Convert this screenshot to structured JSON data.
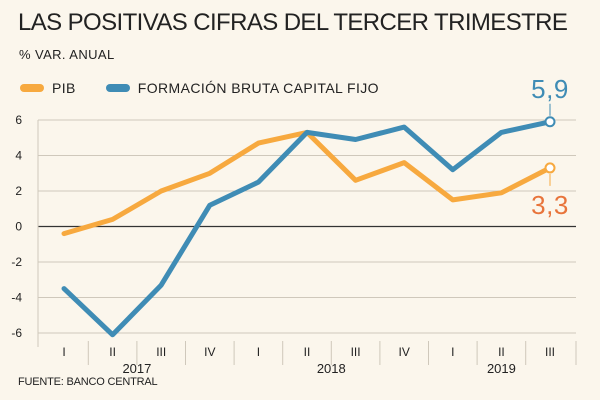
{
  "header": {
    "title": "LAS POSITIVAS CIFRAS DEL TERCER TRIMESTRE",
    "subtitle": "% VAR. ANUAL"
  },
  "footer": {
    "source": "FUENTE: BANCO CENTRAL"
  },
  "colors": {
    "pib": "#f7a93f",
    "fbcf": "#3f8cb5",
    "pib_callout": "#e8743b",
    "fbcf_callout": "#3f8cb5",
    "grid": "#cfc8bb",
    "zero_line": "#333333"
  },
  "chart_data": {
    "type": "line",
    "title": "LAS POSITIVAS CIFRAS DEL TERCER TRIMESTRE",
    "subtitle": "% VAR. ANUAL",
    "categories": [
      "I",
      "II",
      "III",
      "IV",
      "I",
      "II",
      "III",
      "IV",
      "I",
      "II",
      "III"
    ],
    "year_groups": [
      {
        "label": "2017",
        "start": 0,
        "end": 3
      },
      {
        "label": "2018",
        "start": 4,
        "end": 7
      },
      {
        "label": "2019",
        "start": 8,
        "end": 10
      }
    ],
    "series": [
      {
        "name": "PIB",
        "color": "#f7a93f",
        "values": [
          -0.4,
          0.4,
          2.0,
          3.0,
          4.7,
          5.3,
          2.6,
          3.6,
          1.5,
          1.9,
          3.3
        ]
      },
      {
        "name": "FORMACIÓN BRUTA CAPITAL FIJO",
        "color": "#3f8cb5",
        "values": [
          -3.5,
          -6.1,
          -3.3,
          1.2,
          2.5,
          5.3,
          4.9,
          5.6,
          3.2,
          5.3,
          5.9
        ]
      }
    ],
    "callouts": [
      {
        "series": "FORMACIÓN BRUTA CAPITAL FIJO",
        "text": "5,9"
      },
      {
        "series": "PIB",
        "text": "3,3"
      }
    ],
    "yticks": [
      "6",
      "4",
      "2",
      "0",
      "-2",
      "-4",
      "-6"
    ],
    "ytick_values": [
      6,
      4,
      2,
      0,
      -2,
      -4,
      -6
    ],
    "ylim": [
      -6,
      6
    ],
    "grid": true,
    "legend": "top-left"
  }
}
